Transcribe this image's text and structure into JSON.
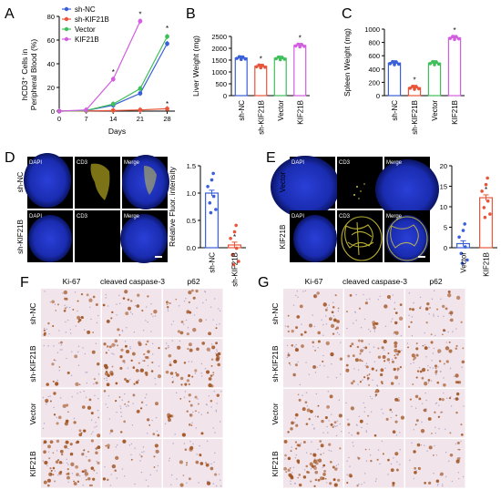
{
  "panels": {
    "a": {
      "letter": "A",
      "ylabel_line1": "hCD3⁺ Cells in",
      "ylabel_line2": "Peripheral Blood (%)"
    },
    "b": {
      "letter": "B"
    },
    "c": {
      "letter": "C"
    },
    "d": {
      "letter": "D",
      "row_labels": [
        "sh-NC",
        "sh-KIF21B"
      ],
      "channels": [
        "DAPI",
        "CD3",
        "Merge"
      ],
      "ylabel": "Relative Fluor. intensity"
    },
    "e": {
      "letter": "E",
      "row_labels": [
        "Vector",
        "KIF21B"
      ],
      "channels": [
        "DAPI",
        "CD3",
        "Merge"
      ],
      "ylabel": "Relative Fluor. intensity"
    },
    "f": {
      "letter": "F",
      "columns": [
        "Ki-67",
        "cleaved caspase-3",
        "p62"
      ],
      "rows": [
        "sh-NC",
        "sh-KIF21B",
        "Vector",
        "KIF21B"
      ]
    },
    "g": {
      "letter": "G",
      "columns": [
        "Ki-67",
        "cleaved caspase-3",
        "p62"
      ],
      "rows": [
        "sh-NC",
        "sh-KIF21B",
        "Vector",
        "KIF21B"
      ]
    }
  },
  "colors": {
    "sh_nc": "#3a5fd9",
    "sh_kif21b": "#e8553a",
    "vector": "#3fbf5a",
    "kif21b": "#d25ee0",
    "dapi_blue": "#1a2fc8",
    "cd3_yellow": "#e6dc3c",
    "ihc_brown": "#a0521e",
    "ihc_bg": "#f1e4ea"
  },
  "chart_data": [
    {
      "panel": "A",
      "type": "line",
      "x": [
        0,
        7,
        14,
        21,
        28
      ],
      "xlabel": "Days",
      "ylabel": "hCD3⁺ Cells in Peripheral Blood (%)",
      "xticks": [
        "0",
        "7",
        "14",
        "21",
        "28"
      ],
      "yticks": [
        "0",
        "20",
        "40",
        "60",
        "80"
      ],
      "xlim": [
        0,
        30
      ],
      "ylim": [
        0,
        80
      ],
      "legend": "top-left",
      "series": [
        {
          "name": "sh-NC",
          "color": "#3a5fd9",
          "values": [
            0,
            0.5,
            5,
            15,
            57
          ]
        },
        {
          "name": "sh-KIF21B",
          "color": "#e8553a",
          "values": [
            0,
            0.2,
            0.5,
            1,
            2
          ]
        },
        {
          "name": "Vector",
          "color": "#3fbf5a",
          "values": [
            0,
            0.5,
            6,
            19,
            63
          ]
        },
        {
          "name": "KIF21B",
          "color": "#d25ee0",
          "values": [
            0,
            1,
            27,
            76,
            null
          ]
        }
      ],
      "stars": [
        {
          "x": 14,
          "y": 33,
          "text": "*"
        },
        {
          "x": 21,
          "y": 82,
          "text": "*"
        },
        {
          "x": 28,
          "y": 70,
          "text": "*"
        },
        {
          "x": 28,
          "y": 6,
          "text": "*"
        }
      ]
    },
    {
      "panel": "B",
      "type": "bar",
      "categories": [
        "sh-NC",
        "sh-KIF21B",
        "Vector",
        "KIF21B"
      ],
      "values": [
        1590,
        1240,
        1580,
        2120
      ],
      "ylabel": "Liver Weight (mg)",
      "yticks": [
        "0",
        "500",
        "1000",
        "1500",
        "2000",
        "2500"
      ],
      "ylim": [
        0,
        2500
      ],
      "stars": [
        "",
        "*",
        "",
        "*"
      ]
    },
    {
      "panel": "C",
      "type": "bar",
      "categories": [
        "sh-NC",
        "sh-KIF21B",
        "Vector",
        "KIF21B"
      ],
      "values": [
        490,
        120,
        490,
        870
      ],
      "ylabel": "Spleen Weight (mg)",
      "yticks": [
        "0",
        "200",
        "400",
        "600",
        "800",
        "1000"
      ],
      "ylim": [
        0,
        1000
      ],
      "stars": [
        "",
        "*",
        "",
        "*"
      ]
    },
    {
      "panel": "D",
      "type": "bar",
      "categories": [
        "sh-NC",
        "sh-KIF21B"
      ],
      "values": [
        1.0,
        0.05
      ],
      "ylabel": "Relative Fluor. intensity",
      "yticks": [
        "0.0",
        "0.5",
        "1.0",
        "1.5"
      ],
      "ylim": [
        0,
        1.5
      ],
      "stars": [
        "",
        "*"
      ]
    },
    {
      "panel": "E",
      "type": "bar",
      "categories": [
        "Vector",
        "KIF21B"
      ],
      "values": [
        1.0,
        12.2
      ],
      "ylabel": "Relative Fluor. intensity",
      "yticks": [
        "0",
        "5",
        "10",
        "15",
        "20"
      ],
      "ylim": [
        0,
        20
      ],
      "stars": [
        "",
        "*"
      ]
    }
  ]
}
